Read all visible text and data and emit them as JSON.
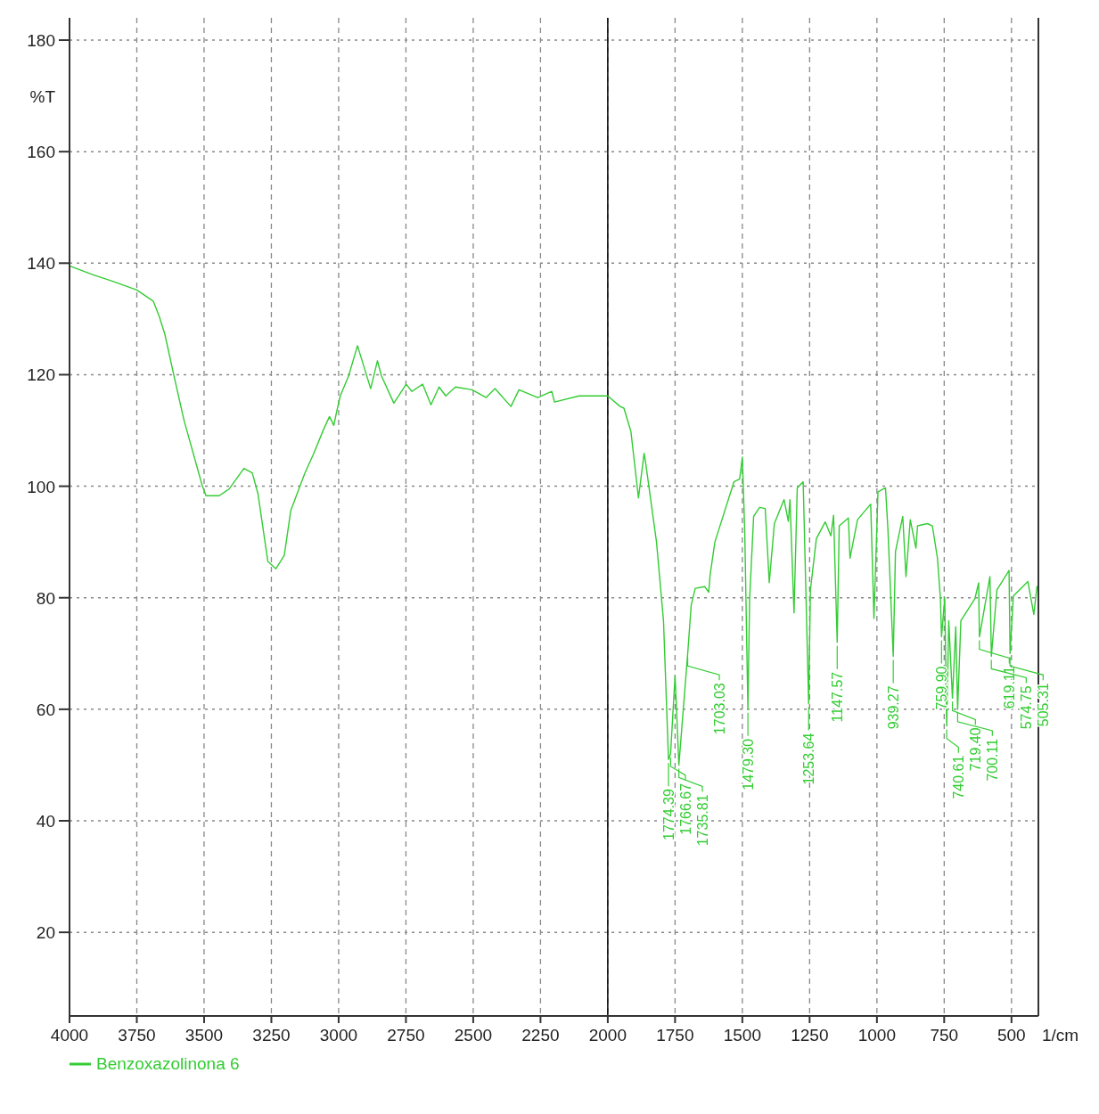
{
  "chart_data": {
    "type": "line",
    "xlabel": "1/cm",
    "ylabel": "%T",
    "xlim": [
      4000,
      400
    ],
    "ylim": [
      5,
      184
    ],
    "xticks": [
      500,
      750,
      1000,
      1250,
      1500,
      1750,
      2000,
      2250,
      2500,
      2750,
      3000,
      3250,
      3500,
      3750,
      4000
    ],
    "yticks": [
      20,
      40,
      60,
      80,
      100,
      120,
      140,
      160,
      180
    ],
    "grid": true,
    "legend": "bottom left",
    "ref_lines": [
      {
        "axis": "x",
        "value": 2000,
        "color": "#000000"
      }
    ],
    "x": [
      405,
      417,
      439,
      493,
      505.31,
      509,
      554,
      574.75,
      580,
      619.11,
      622,
      636,
      688,
      700.11,
      707,
      719.4,
      733,
      740.61,
      748,
      759.9,
      764,
      775,
      794,
      812,
      849,
      855,
      876,
      892,
      904,
      931,
      939.27,
      959,
      968,
      996,
      1011,
      1023,
      1072,
      1100,
      1106,
      1140,
      1147.57,
      1161,
      1171,
      1192,
      1225,
      1247,
      1253.64,
      1274,
      1296,
      1308,
      1323,
      1329,
      1345,
      1381,
      1400,
      1415,
      1436,
      1458,
      1473,
      1479.3,
      1491,
      1500,
      1510,
      1531,
      1602,
      1620,
      1625,
      1640,
      1675,
      1690,
      1703.03,
      1735.81,
      1750,
      1766.67,
      1774.39,
      1793,
      1819,
      1859,
      1865,
      1886,
      1914,
      1940,
      1954,
      2000,
      2107,
      2198,
      2208,
      2260,
      2330,
      2360,
      2419,
      2452,
      2504,
      2566,
      2602,
      2627,
      2657,
      2688,
      2728,
      2749,
      2795,
      2841,
      2856,
      2881,
      2930,
      2963,
      2994,
      3009,
      3018,
      3034,
      3055,
      3095,
      3125,
      3178,
      3202,
      3233,
      3263,
      3300,
      3321,
      3352,
      3407,
      3444,
      3493,
      3508,
      3575,
      3612,
      3646,
      3667,
      3689,
      3750,
      3842,
      3912,
      4000
    ],
    "series": [
      {
        "name": "Benzoxazolinona 6",
        "color": "#33cc33",
        "values": [
          82.1,
          77.0,
          82.9,
          80.3,
          70,
          84.9,
          81.4,
          69.5,
          83.8,
          73,
          82.7,
          79.8,
          75.9,
          60,
          74.8,
          62,
          75.9,
          57,
          80,
          73,
          79.8,
          87.1,
          92.9,
          93.3,
          92.9,
          88.9,
          94.0,
          83.8,
          94.6,
          88.3,
          69.5,
          92.2,
          99.7,
          99.0,
          76.3,
          96.8,
          94.0,
          87.1,
          94.3,
          92.9,
          72,
          94.8,
          91.1,
          93.6,
          90.6,
          81.4,
          61,
          100.8,
          99.7,
          77.3,
          97.6,
          93.7,
          97.6,
          93.3,
          82.7,
          96.0,
          96.2,
          94.6,
          79.8,
          60,
          91.7,
          105.2,
          101.3,
          100.8,
          90.0,
          84,
          81,
          82,
          81.7,
          78.7,
          70,
          50,
          66,
          52,
          51,
          75.9,
          90.0,
          104.1,
          105.9,
          97.9,
          109.8,
          114.0,
          114.3,
          116.2,
          116.2,
          115.1,
          117.0,
          115.9,
          117.3,
          114.3,
          117.5,
          115.9,
          117.3,
          117.8,
          116.2,
          117.8,
          114.6,
          118.3,
          117.0,
          118.3,
          114.9,
          119.8,
          122.5,
          117.5,
          125.2,
          119.8,
          116.2,
          113.0,
          110.9,
          112.5,
          110.3,
          105.6,
          102.4,
          95.6,
          87.6,
          85.2,
          86.5,
          98.7,
          102.4,
          103.2,
          99.5,
          98.3,
          98.3,
          100.3,
          111.9,
          119.8,
          127.3,
          130.5,
          133.2,
          135.2,
          136.8,
          137.9,
          139.5
        ]
      }
    ],
    "annotations": [
      {
        "text": "505.31",
        "x": 505.31,
        "y": 70
      },
      {
        "text": "574.75",
        "x": 574.75,
        "y": 69.5
      },
      {
        "text": "619.11",
        "x": 619.11,
        "y": 73
      },
      {
        "text": "700.11",
        "x": 700.11,
        "y": 60
      },
      {
        "text": "719.40",
        "x": 719.4,
        "y": 62
      },
      {
        "text": "740.61",
        "x": 740.61,
        "y": 57
      },
      {
        "text": "759.90",
        "x": 759.9,
        "y": 73
      },
      {
        "text": "939.27",
        "x": 939.27,
        "y": 69.5
      },
      {
        "text": "1147.57",
        "x": 1147.57,
        "y": 72
      },
      {
        "text": "1253.64",
        "x": 1253.64,
        "y": 61
      },
      {
        "text": "1479.30",
        "x": 1479.3,
        "y": 60
      },
      {
        "text": "1703.03",
        "x": 1703.03,
        "y": 70
      },
      {
        "text": "1735.81",
        "x": 1735.81,
        "y": 50
      },
      {
        "text": "1766.67",
        "x": 1766.67,
        "y": 52
      },
      {
        "text": "1774.39",
        "x": 1774.39,
        "y": 51
      }
    ]
  }
}
